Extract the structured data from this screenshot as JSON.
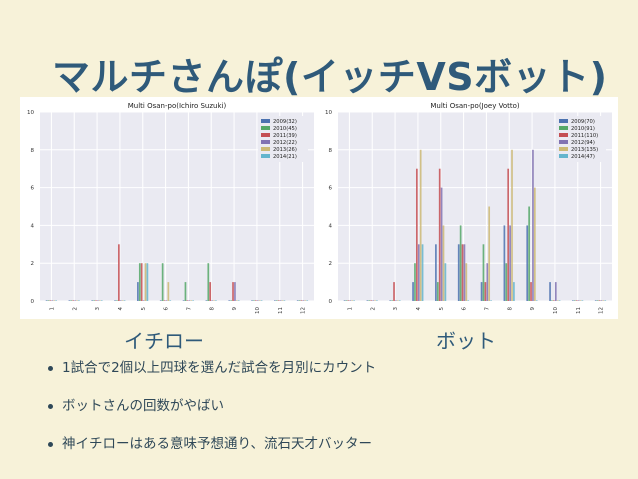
{
  "slide": {
    "title": "マルチさんぽ(イッチVSボット)",
    "chart_labels": [
      "イチロー",
      "ボット"
    ],
    "bullets": [
      "1試合で2個以上四球を選んだ試合を月別にカウント",
      "ボットさんの回数がやばい",
      "神イチローはある意味予想通り、流石天才バッター"
    ]
  },
  "colors": {
    "background": "#f7f2d9",
    "title": "#2f5a7a",
    "plot_bg": "#eaeaf2",
    "series": [
      "#4c72b0",
      "#55a868",
      "#c44e52",
      "#8172b2",
      "#ccb974",
      "#64b5cd"
    ]
  },
  "chart_data": [
    {
      "type": "bar",
      "title": "Multi Osan-po(Ichiro Suzuki)",
      "categories": [
        "1",
        "2",
        "3",
        "4",
        "5",
        "6",
        "7",
        "8",
        "9",
        "10",
        "11",
        "12"
      ],
      "ylim": [
        0,
        10
      ],
      "yticks": [
        0,
        2,
        4,
        6,
        8,
        10
      ],
      "grid": true,
      "legend_position": "top-right",
      "series": [
        {
          "name": "2009(32)",
          "values": [
            0,
            0,
            0,
            0,
            1,
            0,
            0,
            0,
            0,
            0,
            0,
            0
          ]
        },
        {
          "name": "2010(45)",
          "values": [
            0,
            0,
            0,
            0,
            2,
            2,
            1,
            2,
            0,
            0,
            0,
            0
          ]
        },
        {
          "name": "2011(39)",
          "values": [
            0,
            0,
            0,
            3,
            2,
            0,
            0,
            1,
            1,
            0,
            0,
            0
          ]
        },
        {
          "name": "2012(22)",
          "values": [
            0,
            0,
            0,
            0,
            0,
            0,
            0,
            0,
            1,
            0,
            0,
            0
          ]
        },
        {
          "name": "2013(26)",
          "values": [
            0,
            0,
            0,
            0,
            2,
            1,
            0,
            0,
            0,
            0,
            0,
            0
          ]
        },
        {
          "name": "2014(21)",
          "values": [
            0,
            0,
            0,
            0,
            2,
            0,
            0,
            0,
            0,
            0,
            0,
            0
          ]
        }
      ]
    },
    {
      "type": "bar",
      "title": "Multi Osan-po(Joey Votto)",
      "categories": [
        "1",
        "2",
        "3",
        "4",
        "5",
        "6",
        "7",
        "8",
        "9",
        "10",
        "11",
        "12"
      ],
      "ylim": [
        0,
        10
      ],
      "yticks": [
        0,
        2,
        4,
        6,
        8,
        10
      ],
      "grid": true,
      "legend_position": "top-right",
      "series": [
        {
          "name": "2009(70)",
          "values": [
            0,
            0,
            0,
            1,
            3,
            3,
            1,
            4,
            4,
            1,
            0,
            0
          ]
        },
        {
          "name": "2010(91)",
          "values": [
            0,
            0,
            0,
            2,
            1,
            4,
            3,
            2,
            5,
            0,
            0,
            0
          ]
        },
        {
          "name": "2011(110)",
          "values": [
            0,
            0,
            1,
            7,
            7,
            3,
            1,
            7,
            1,
            0,
            0,
            0
          ]
        },
        {
          "name": "2012(94)",
          "values": [
            0,
            0,
            0,
            3,
            6,
            3,
            2,
            4,
            8,
            1,
            0,
            0
          ]
        },
        {
          "name": "2013(135)",
          "values": [
            0,
            0,
            0,
            8,
            4,
            2,
            5,
            8,
            6,
            0,
            0,
            0
          ]
        },
        {
          "name": "2014(47)",
          "values": [
            0,
            0,
            0,
            3,
            2,
            0,
            0,
            1,
            0,
            0,
            0,
            0
          ]
        }
      ]
    }
  ]
}
